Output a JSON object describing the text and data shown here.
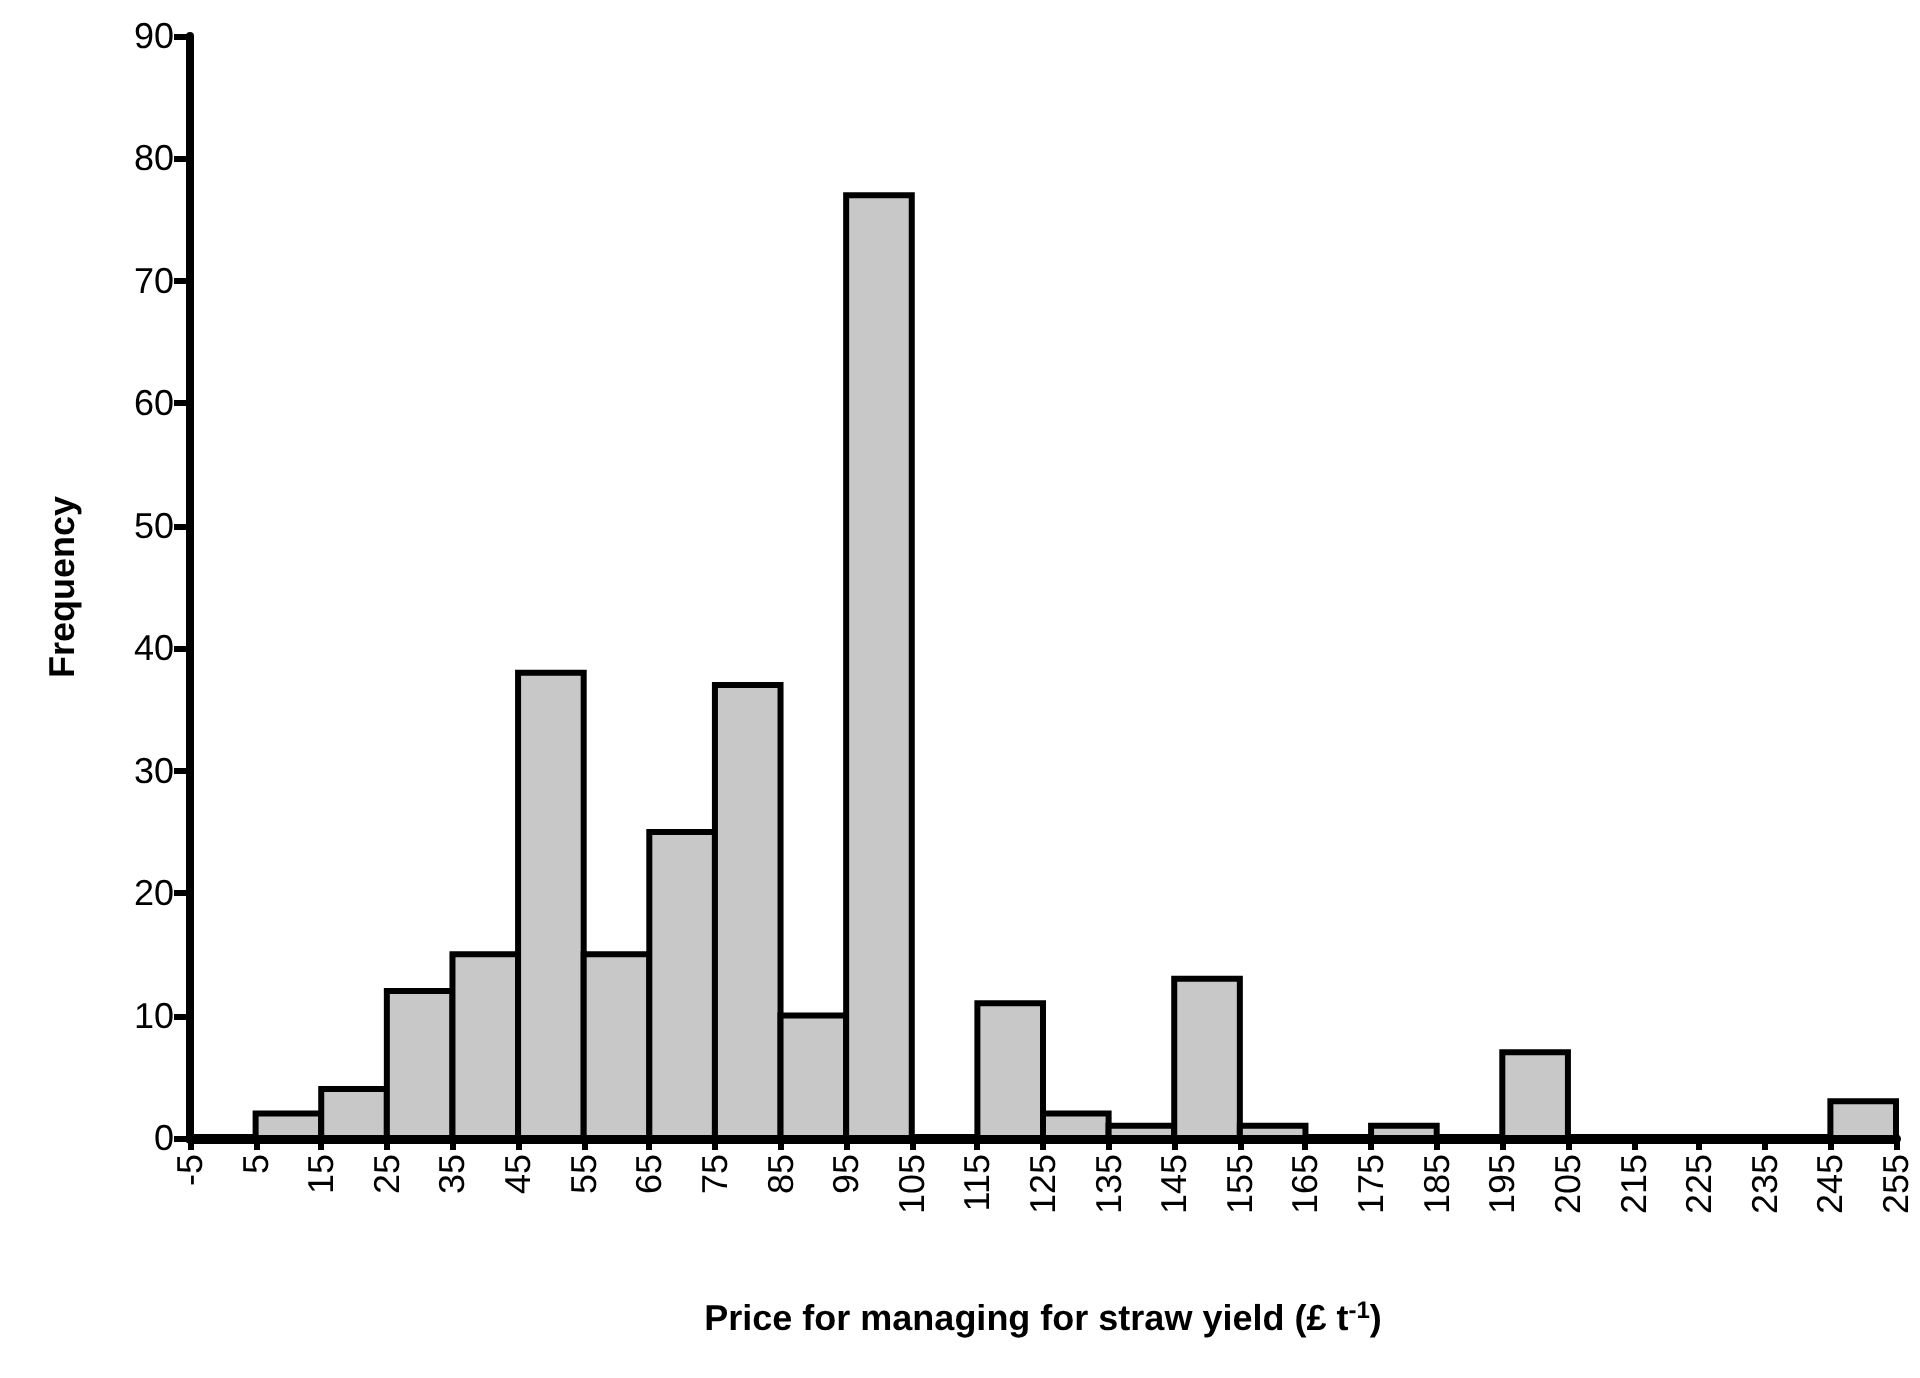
{
  "chart_data": {
    "type": "histogram",
    "xlabel": "Price for managing for straw yield (£ t$^{-1}$)",
    "ylabel": "Frequency",
    "bins": [
      -5,
      5,
      15,
      25,
      35,
      45,
      55,
      65,
      75,
      85,
      95,
      105,
      115,
      125,
      135,
      145,
      155,
      165,
      175,
      185,
      195,
      205,
      215,
      225,
      235,
      245,
      255
    ],
    "values": [
      0,
      2,
      4,
      12,
      15,
      38,
      15,
      25,
      37,
      10,
      77,
      0,
      11,
      2,
      1,
      13,
      1,
      0,
      1,
      0,
      7,
      0,
      0,
      0,
      0,
      3
    ],
    "color": "#c8c8c8",
    "xlim": [
      -5,
      255
    ],
    "xticks": [
      -5,
      5,
      15,
      25,
      35,
      45,
      55,
      65,
      75,
      85,
      95,
      105,
      115,
      125,
      135,
      145,
      155,
      165,
      175,
      185,
      195,
      205,
      215,
      225,
      235,
      245,
      255
    ],
    "ylim": [
      0,
      90
    ],
    "yticks": [
      0,
      10,
      20,
      30,
      40,
      50,
      60,
      70,
      80,
      90
    ],
    "grid": false
  }
}
